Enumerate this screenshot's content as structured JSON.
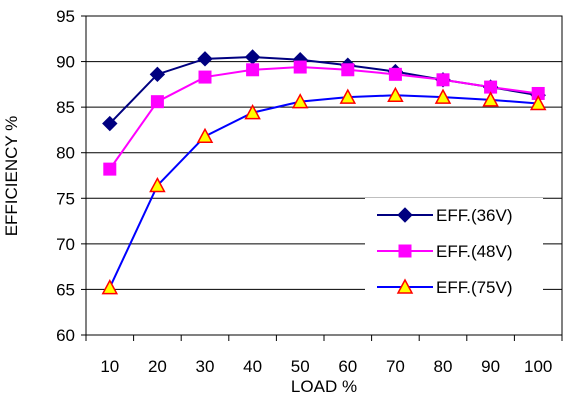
{
  "chart_data": {
    "type": "line",
    "xlabel": "LOAD %",
    "ylabel": "EFFICIENCY %",
    "categories": [
      "10",
      "20",
      "30",
      "40",
      "50",
      "60",
      "70",
      "80",
      "90",
      "100"
    ],
    "ylim": [
      60,
      95
    ],
    "yticks": [
      "60",
      "65",
      "70",
      "75",
      "80",
      "85",
      "90",
      "95"
    ],
    "grid": "horizontal",
    "legend_position": "bottom-right",
    "series": [
      {
        "name": "EFF.(36V)",
        "color": "#000080",
        "marker": "diamond",
        "values": [
          83.2,
          88.6,
          90.3,
          90.5,
          90.2,
          89.6,
          88.9,
          88.0,
          87.2,
          86.3
        ]
      },
      {
        "name": "EFF.(48V)",
        "color": "#FF00FF",
        "marker": "square",
        "values": [
          78.2,
          85.6,
          88.3,
          89.1,
          89.4,
          89.1,
          88.6,
          88.0,
          87.2,
          86.5
        ]
      },
      {
        "name": "EFF.(75V)",
        "color": "#0000FF",
        "marker": "triangle",
        "marker_fill": "#FFFF00",
        "marker_stroke": "#FF0000",
        "values": [
          65.2,
          76.4,
          81.8,
          84.4,
          85.6,
          86.1,
          86.3,
          86.1,
          85.8,
          85.4
        ]
      }
    ]
  }
}
